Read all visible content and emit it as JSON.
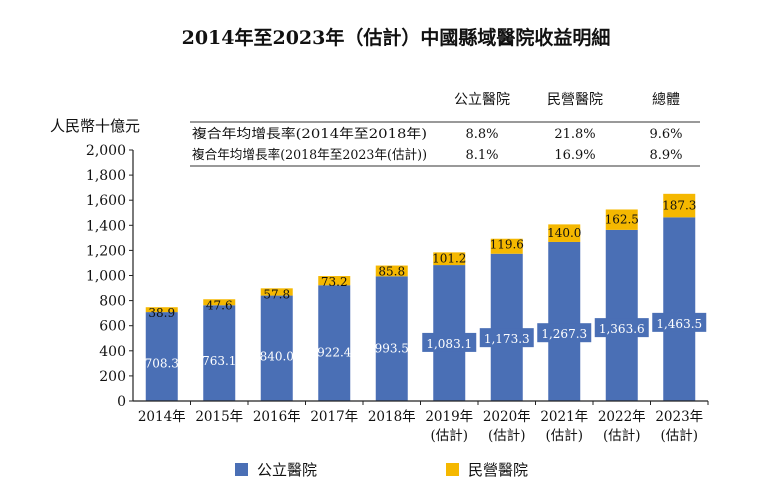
{
  "chart_data": {
    "type": "bar",
    "stacked": true,
    "title": "2014年至2023年（估計）中國縣域醫院收益明細",
    "ylabel": "人民幣十億元",
    "ylim": [
      0,
      2000
    ],
    "yticks": [
      "0",
      "200",
      "400",
      "600",
      "800",
      "1,000",
      "1,200",
      "1,400",
      "1,600",
      "1,800",
      "2,000"
    ],
    "categories": [
      [
        "2014年",
        ""
      ],
      [
        "2015年",
        ""
      ],
      [
        "2016年",
        ""
      ],
      [
        "2017年",
        ""
      ],
      [
        "2018年",
        ""
      ],
      [
        "2019年",
        "(估計)"
      ],
      [
        "2020年",
        "(估計)"
      ],
      [
        "2021年",
        "(估計)"
      ],
      [
        "2022年",
        "(估計)"
      ],
      [
        "2023年",
        "(估計)"
      ]
    ],
    "series": [
      {
        "name": "公立醫院",
        "color": "#4a6fb5",
        "values": [
          708.3,
          763.1,
          840.0,
          922.4,
          993.5,
          1083.1,
          1173.3,
          1267.3,
          1363.6,
          1463.5
        ],
        "labels": [
          "708.3",
          "763.1",
          "840.0",
          "922.4",
          "993.5",
          "1,083.1",
          "1,173.3",
          "1,267.3",
          "1,363.6",
          "1,463.5"
        ]
      },
      {
        "name": "民營醫院",
        "color": "#f5b800",
        "values": [
          38.9,
          47.6,
          57.8,
          73.2,
          85.8,
          101.2,
          119.6,
          140.0,
          162.5,
          187.3
        ],
        "labels": [
          "38.9",
          "47.6",
          "57.8",
          "73.2",
          "85.8",
          "101.2",
          "119.6",
          "140.0",
          "162.5",
          "187.3"
        ]
      }
    ],
    "grid": false,
    "legend_position": "bottom",
    "cagr_table": {
      "headers": [
        "",
        "公立醫院",
        "民營醫院",
        "總體"
      ],
      "rows": [
        [
          "複合年均增長率(2014年至2018年)",
          "8.8%",
          "21.8%",
          "9.6%"
        ],
        [
          "複合年均增長率(2018年至2023年(估計))",
          "8.1%",
          "16.9%",
          "8.9%"
        ]
      ]
    }
  }
}
